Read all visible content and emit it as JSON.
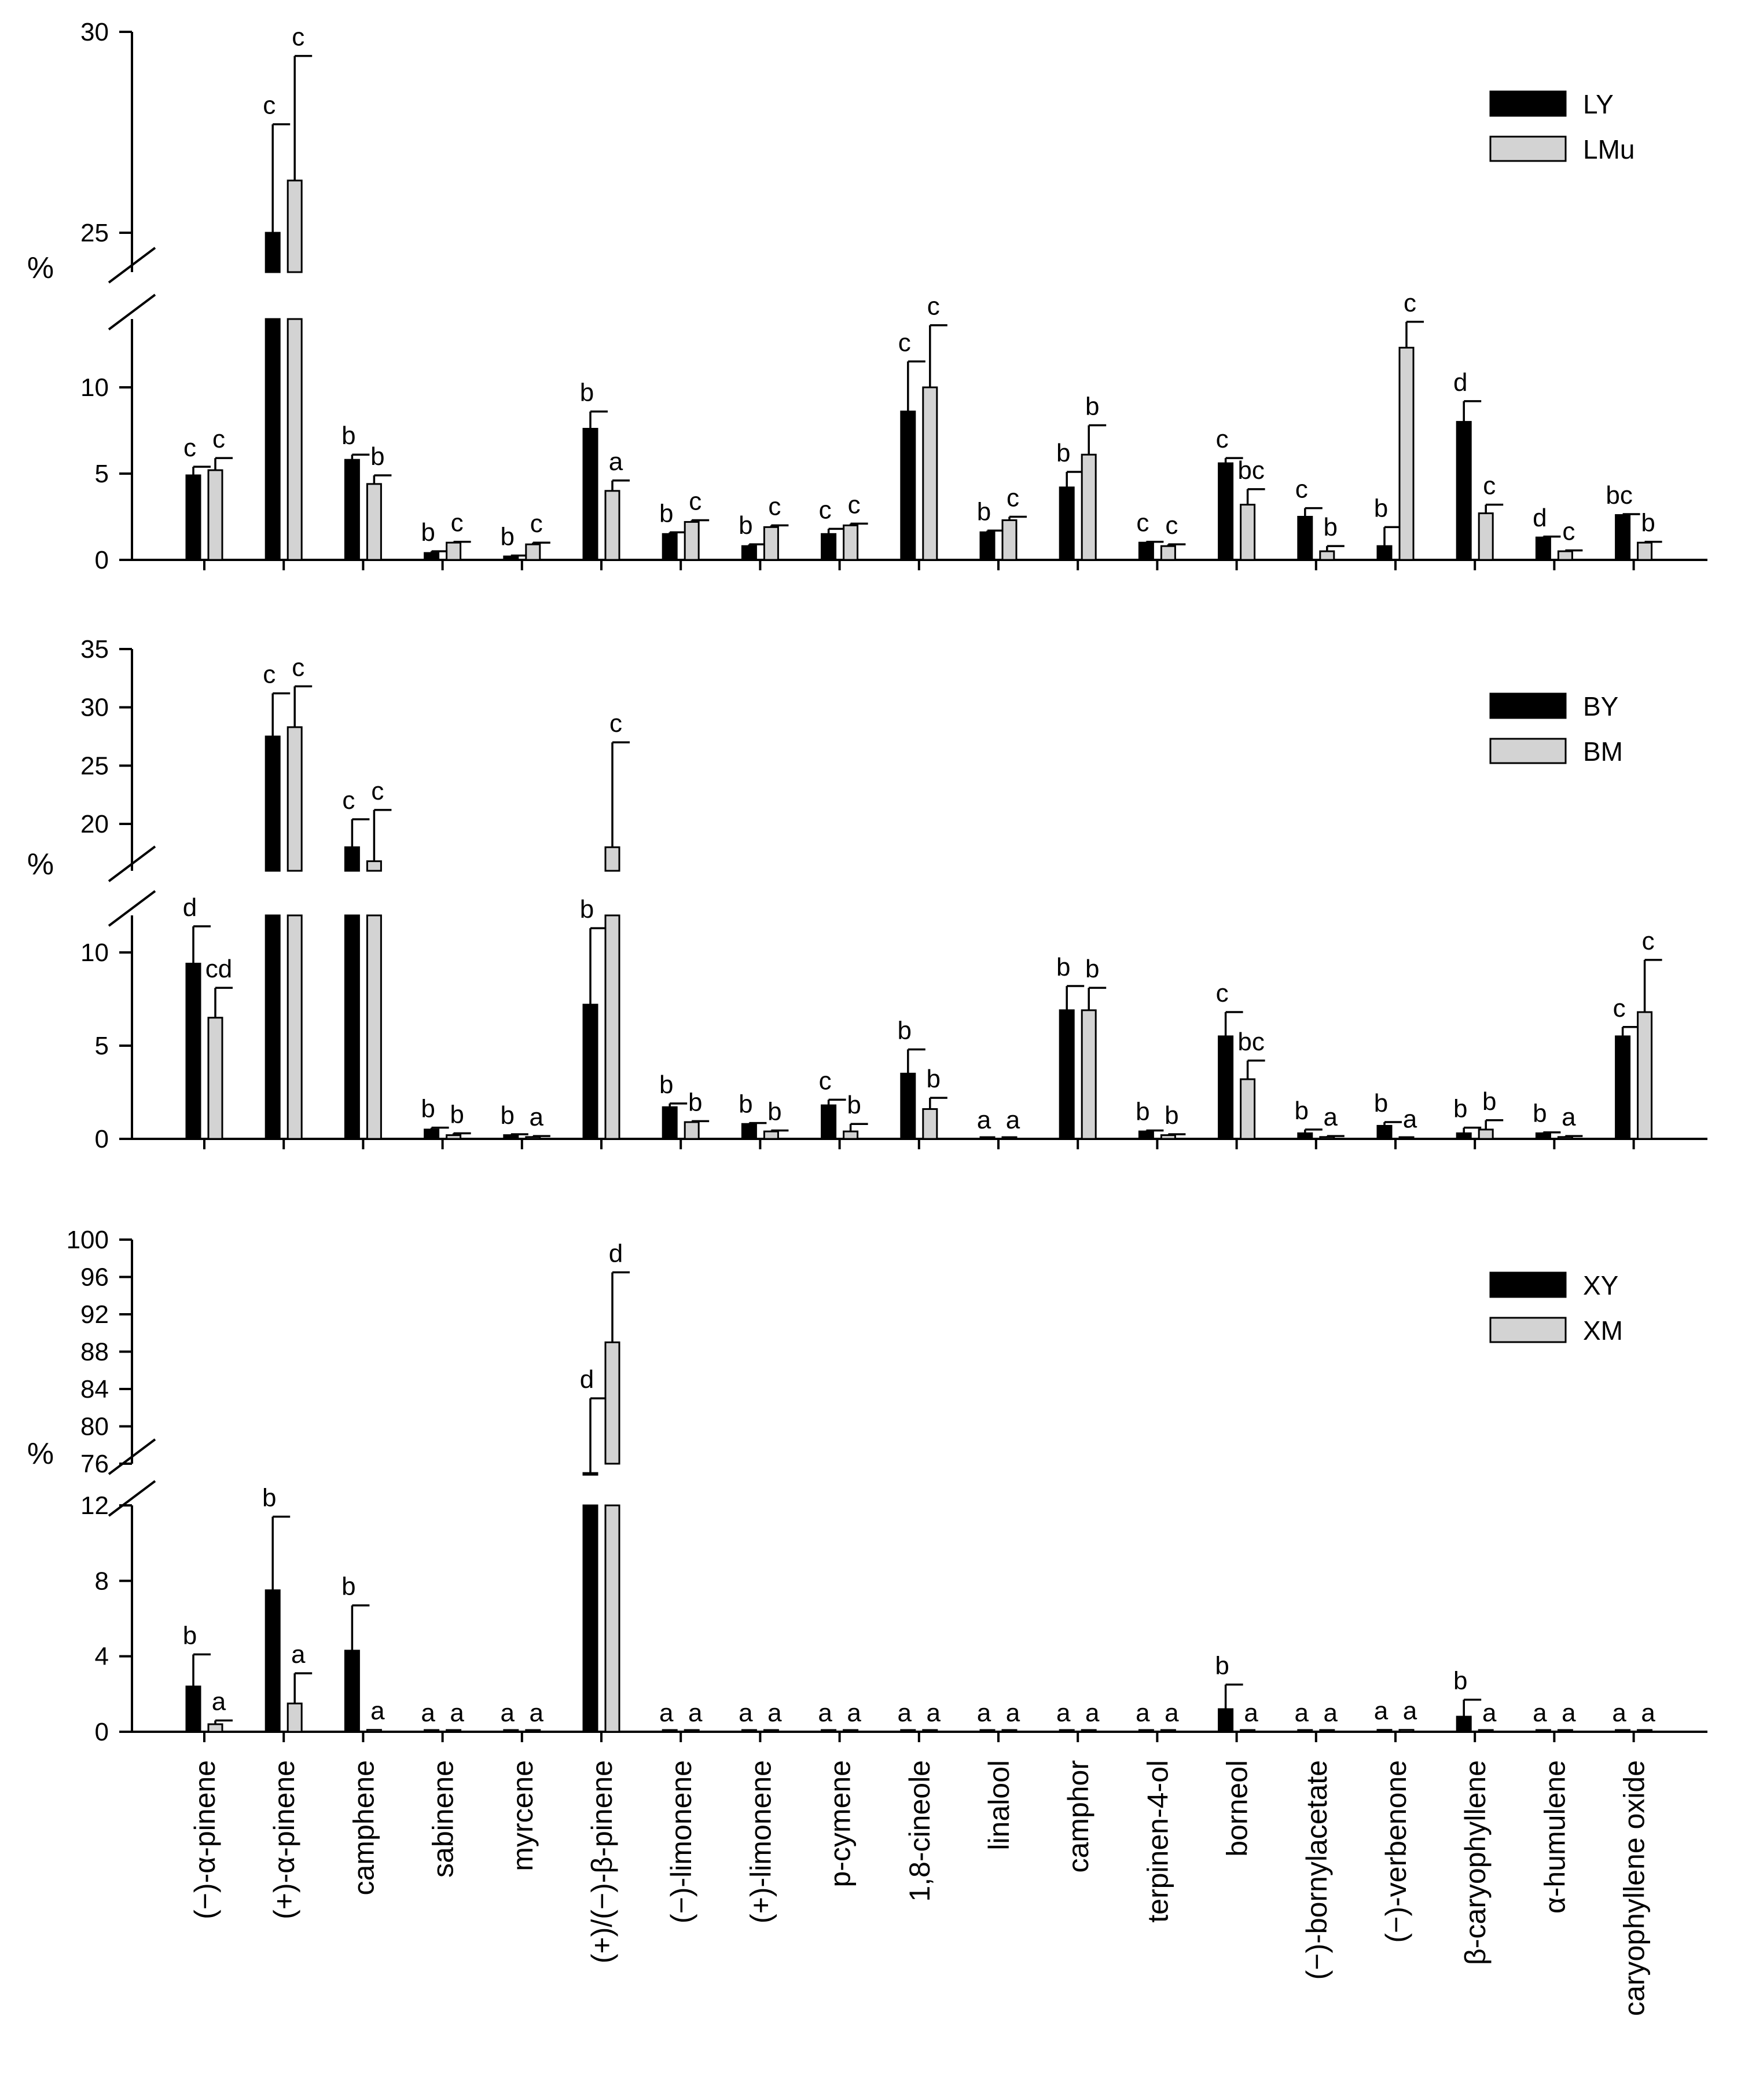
{
  "chart_data": [
    {
      "type": "bar",
      "panel": "top",
      "ylabel": "%",
      "ylim_lower": [
        0,
        14
      ],
      "ylim_upper": [
        24,
        30
      ],
      "yticks_lower": [
        "0",
        "5",
        "10"
      ],
      "yticks_upper": [
        "25",
        "30"
      ],
      "yticks_lower_values": [
        0,
        5,
        10
      ],
      "yticks_upper_values": [
        25,
        30
      ],
      "legend": {
        "position": "top-right"
      },
      "categories": [
        "(−)-α-pinene",
        "(+)-α-pinene",
        "camphene",
        "sabinene",
        "myrcene",
        "(+)/(−)-β-pinene",
        "(−)-limonene",
        "(+)-limonene",
        "p-cymene",
        "1,8-cineole",
        "linalool",
        "camphor",
        "terpinen-4-ol",
        "borneol",
        "(−)-bornylacetate",
        "(−)-verbenone",
        "β-caryophyllene",
        "α-humulene",
        "caryophyllene oxide"
      ],
      "series": [
        {
          "name": "LY",
          "values": [
            4.9,
            25.0,
            5.8,
            0.4,
            0.2,
            7.6,
            1.5,
            0.8,
            1.5,
            8.6,
            1.6,
            4.2,
            1.0,
            5.6,
            2.5,
            0.8,
            8.0,
            1.3,
            2.6
          ],
          "errors": [
            0.5,
            2.7,
            0.3,
            0.1,
            0.05,
            1.0,
            0.1,
            0.1,
            0.3,
            2.9,
            0.1,
            0.9,
            0.05,
            0.3,
            0.5,
            1.1,
            1.2,
            0.05,
            0.05
          ],
          "letters": [
            "c",
            "c",
            "b",
            "b",
            "b",
            "b",
            "b",
            "b",
            "c",
            "c",
            "b",
            "b",
            "c",
            "c",
            "c",
            "b",
            "d",
            "d",
            "bc"
          ]
        },
        {
          "name": "LMu",
          "values": [
            5.2,
            26.3,
            4.4,
            1.0,
            0.9,
            4.0,
            2.2,
            1.9,
            2.0,
            10.0,
            2.3,
            6.1,
            0.8,
            3.2,
            0.5,
            12.3,
            2.7,
            0.5,
            1.0
          ],
          "errors": [
            0.7,
            3.1,
            0.5,
            0.05,
            0.1,
            0.6,
            0.1,
            0.1,
            0.1,
            3.6,
            0.2,
            1.7,
            0.1,
            0.9,
            0.3,
            1.5,
            0.5,
            0.05,
            0.05
          ],
          "letters": [
            "c",
            "c",
            "b",
            "c",
            "c",
            "a",
            "c",
            "c",
            "c",
            "c",
            "c",
            "b",
            "c",
            "bc",
            "b",
            "c",
            "c",
            "c",
            "b"
          ]
        }
      ]
    },
    {
      "type": "bar",
      "panel": "middle",
      "ylabel": "%",
      "ylim_lower": [
        0,
        12
      ],
      "ylim_upper": [
        16,
        35
      ],
      "yticks_lower": [
        "0",
        "5",
        "10"
      ],
      "yticks_upper": [
        "20",
        "25",
        "30",
        "35"
      ],
      "yticks_lower_values": [
        0,
        5,
        10
      ],
      "yticks_upper_values": [
        20,
        25,
        30,
        35
      ],
      "legend": {
        "position": "top-right"
      },
      "categories": [
        "(−)-α-pinene",
        "(+)-α-pinene",
        "camphene",
        "sabinene",
        "myrcene",
        "(+)/(−)-β-pinene",
        "(−)-limonene",
        "(+)-limonene",
        "p-cymene",
        "1,8-cineole",
        "linalool",
        "camphor",
        "terpinen-4-ol",
        "borneol",
        "(−)-bornylacetate",
        "(−)-verbenone",
        "β-caryophyllene",
        "α-humulene",
        "caryophyllene oxide"
      ],
      "series": [
        {
          "name": "BY",
          "values": [
            9.4,
            27.5,
            18.0,
            0.5,
            0.2,
            7.2,
            1.7,
            0.8,
            1.8,
            3.5,
            0.0,
            6.9,
            0.4,
            5.5,
            0.3,
            0.7,
            0.3,
            0.3,
            5.5
          ],
          "errors": [
            2.0,
            3.7,
            2.4,
            0.1,
            0.05,
            4.1,
            0.2,
            0.05,
            0.3,
            1.3,
            0.0,
            1.3,
            0.05,
            1.3,
            0.2,
            0.2,
            0.3,
            0.05,
            0.5
          ],
          "letters": [
            "d",
            "c",
            "c",
            "b",
            "b",
            "b",
            "b",
            "b",
            "c",
            "b",
            "a",
            "b",
            "b",
            "c",
            "b",
            "b",
            "b",
            "b",
            "c"
          ]
        },
        {
          "name": "BM",
          "values": [
            6.5,
            28.3,
            16.8,
            0.2,
            0.1,
            18.0,
            0.9,
            0.4,
            0.4,
            1.6,
            0.0,
            6.9,
            0.2,
            3.2,
            0.1,
            0.05,
            0.5,
            0.1,
            6.8
          ],
          "errors": [
            1.6,
            3.5,
            4.4,
            0.1,
            0.05,
            9.0,
            0.05,
            0.05,
            0.4,
            0.6,
            0.0,
            1.2,
            0.05,
            1.0,
            0.05,
            0.0,
            0.5,
            0.05,
            2.8
          ],
          "letters": [
            "cd",
            "c",
            "c",
            "b",
            "a",
            "c",
            "b",
            "b",
            "b",
            "b",
            "a",
            "b",
            "b",
            "bc",
            "a",
            "a",
            "b",
            "a",
            "c"
          ]
        }
      ]
    },
    {
      "type": "bar",
      "panel": "bottom",
      "ylabel": "%",
      "ylim_lower": [
        0,
        12
      ],
      "ylim_upper": [
        74,
        100
      ],
      "yticks_lower": [
        "0",
        "4",
        "8",
        "12"
      ],
      "yticks_upper": [
        "76",
        "80",
        "84",
        "88",
        "92",
        "96",
        "100"
      ],
      "yticks_lower_values": [
        0,
        4,
        8,
        12
      ],
      "yticks_upper_values": [
        76,
        80,
        84,
        88,
        92,
        96,
        100
      ],
      "legend": {
        "position": "top-right"
      },
      "categories": [
        "(−)-α-pinene",
        "(+)-α-pinene",
        "camphene",
        "sabinene",
        "myrcene",
        "(+)/(−)-β-pinene",
        "(−)-limonene",
        "(+)-limonene",
        "p-cymene",
        "1,8-cineole",
        "linalool",
        "camphor",
        "terpinen-4-ol",
        "borneol",
        "(−)-bornylacetate",
        "(−)-verbenone",
        "β-caryophyllene",
        "α-humulene",
        "caryophyllene oxide"
      ],
      "series": [
        {
          "name": "XY",
          "values": [
            2.4,
            7.5,
            4.3,
            0.0,
            0.0,
            75.0,
            0.0,
            0.0,
            0.0,
            0.0,
            0.0,
            0.0,
            0.0,
            1.2,
            0.0,
            0.1,
            0.8,
            0.0,
            0.0
          ],
          "errors": [
            1.7,
            3.9,
            2.4,
            0.0,
            0.0,
            8.0,
            0.0,
            0.0,
            0.0,
            0.0,
            0.0,
            0.0,
            0.0,
            1.3,
            0.0,
            0.0,
            0.9,
            0.0,
            0.0
          ],
          "letters": [
            "b",
            "b",
            "b",
            "a",
            "a",
            "d",
            "a",
            "a",
            "a",
            "a",
            "a",
            "a",
            "a",
            "b",
            "a",
            "a",
            "b",
            "a",
            "a"
          ]
        },
        {
          "name": "XM",
          "values": [
            0.4,
            1.5,
            0.1,
            0.0,
            0.0,
            89.0,
            0.0,
            0.0,
            0.0,
            0.0,
            0.0,
            0.0,
            0.0,
            0.0,
            0.0,
            0.1,
            0.0,
            0.0,
            0.0
          ],
          "errors": [
            0.2,
            1.6,
            0.0,
            0.0,
            0.0,
            7.5,
            0.0,
            0.0,
            0.0,
            0.0,
            0.0,
            0.0,
            0.0,
            0.0,
            0.0,
            0.0,
            0.0,
            0.0,
            0.0
          ],
          "letters": [
            "a",
            "a",
            "a",
            "a",
            "a",
            "d",
            "a",
            "a",
            "a",
            "a",
            "a",
            "a",
            "a",
            "a",
            "a",
            "a",
            "a",
            "a",
            "a"
          ]
        }
      ]
    }
  ]
}
